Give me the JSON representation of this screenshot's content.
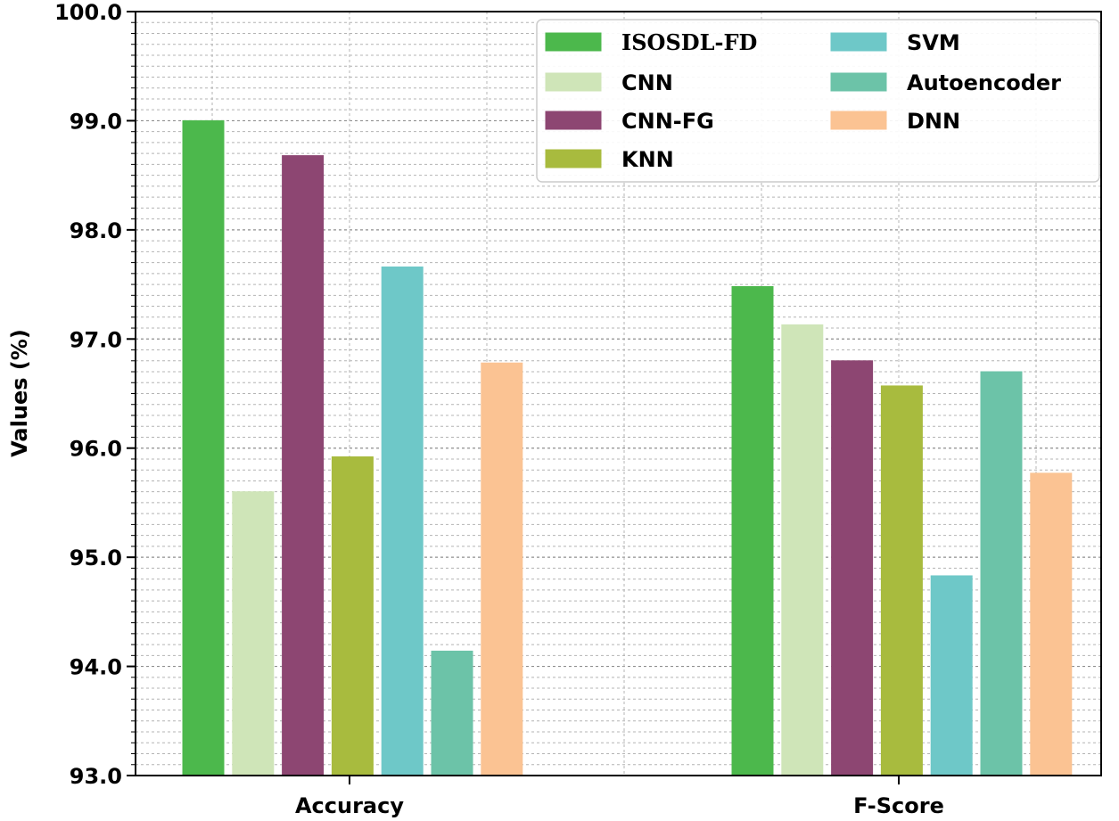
{
  "chart_data": {
    "type": "bar",
    "title": "",
    "xlabel": "",
    "ylabel": "Values (%)",
    "ylim": [
      93.0,
      100.0
    ],
    "yticks": [
      "93.0",
      "94.0",
      "95.0",
      "96.0",
      "97.0",
      "98.0",
      "99.0",
      "100.0"
    ],
    "grid": true,
    "legend_position": "top-right",
    "categories": [
      "Accuracy",
      "F-Score"
    ],
    "series": [
      {
        "name": "ISOSDL-FD",
        "color": "#4cb84c",
        "values": [
          99.0,
          97.48
        ]
      },
      {
        "name": "CNN",
        "color": "#cfe5b8",
        "values": [
          95.6,
          97.13
        ]
      },
      {
        "name": "CNN-FG",
        "color": "#8d4672",
        "values": [
          98.68,
          96.8
        ]
      },
      {
        "name": "KNN",
        "color": "#a8bb3e",
        "values": [
          95.92,
          96.57
        ]
      },
      {
        "name": "SVM",
        "color": "#6ec8c8",
        "values": [
          97.66,
          94.83
        ]
      },
      {
        "name": "Autoencoder",
        "color": "#6cc3a8",
        "values": [
          94.14,
          96.7
        ]
      },
      {
        "name": "DNN",
        "color": "#fbc393",
        "values": [
          96.78,
          95.77
        ]
      }
    ]
  }
}
